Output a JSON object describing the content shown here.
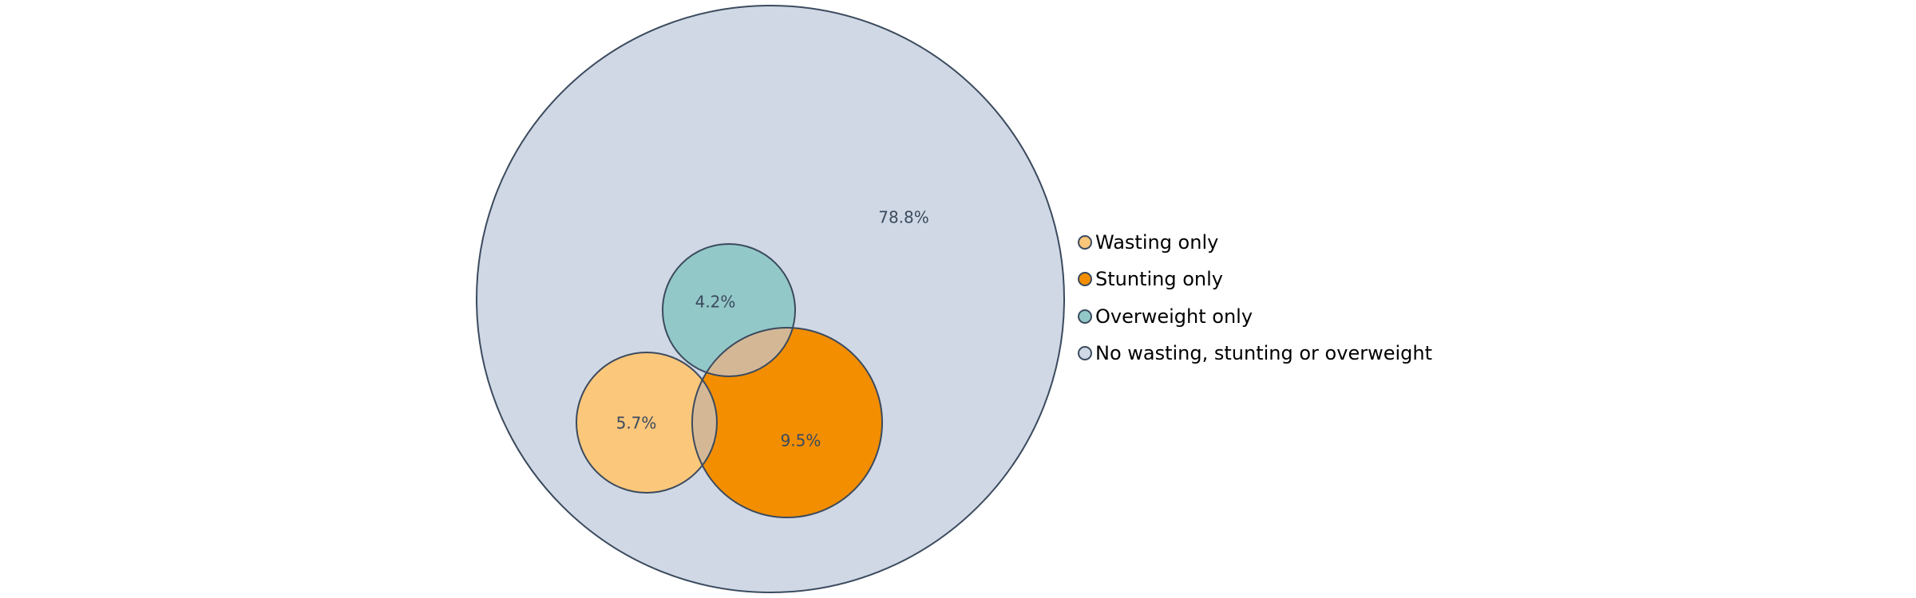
{
  "chart_data": {
    "type": "venn",
    "title": "",
    "sets": [
      {
        "name": "Wasting only",
        "value": 5.7,
        "label": "5.7%",
        "color": "#fbc77b"
      },
      {
        "name": "Stunting only",
        "value": 9.5,
        "label": "9.5%",
        "color": "#f28e00"
      },
      {
        "name": "Overweight only",
        "value": 4.2,
        "label": "4.2%",
        "color": "#93c8c8"
      },
      {
        "name": "No wasting, stunting or overweight",
        "value": 78.8,
        "label": "78.8%",
        "color": "#cfd8e4"
      }
    ],
    "overlaps": [
      {
        "sets": [
          "Wasting only",
          "Stunting only"
        ],
        "color": "#d4b896"
      },
      {
        "sets": [
          "Overweight only",
          "Stunting only"
        ],
        "color": "#d4b896"
      }
    ],
    "outline_color": "#3b4a5e",
    "legend_position": "right"
  }
}
